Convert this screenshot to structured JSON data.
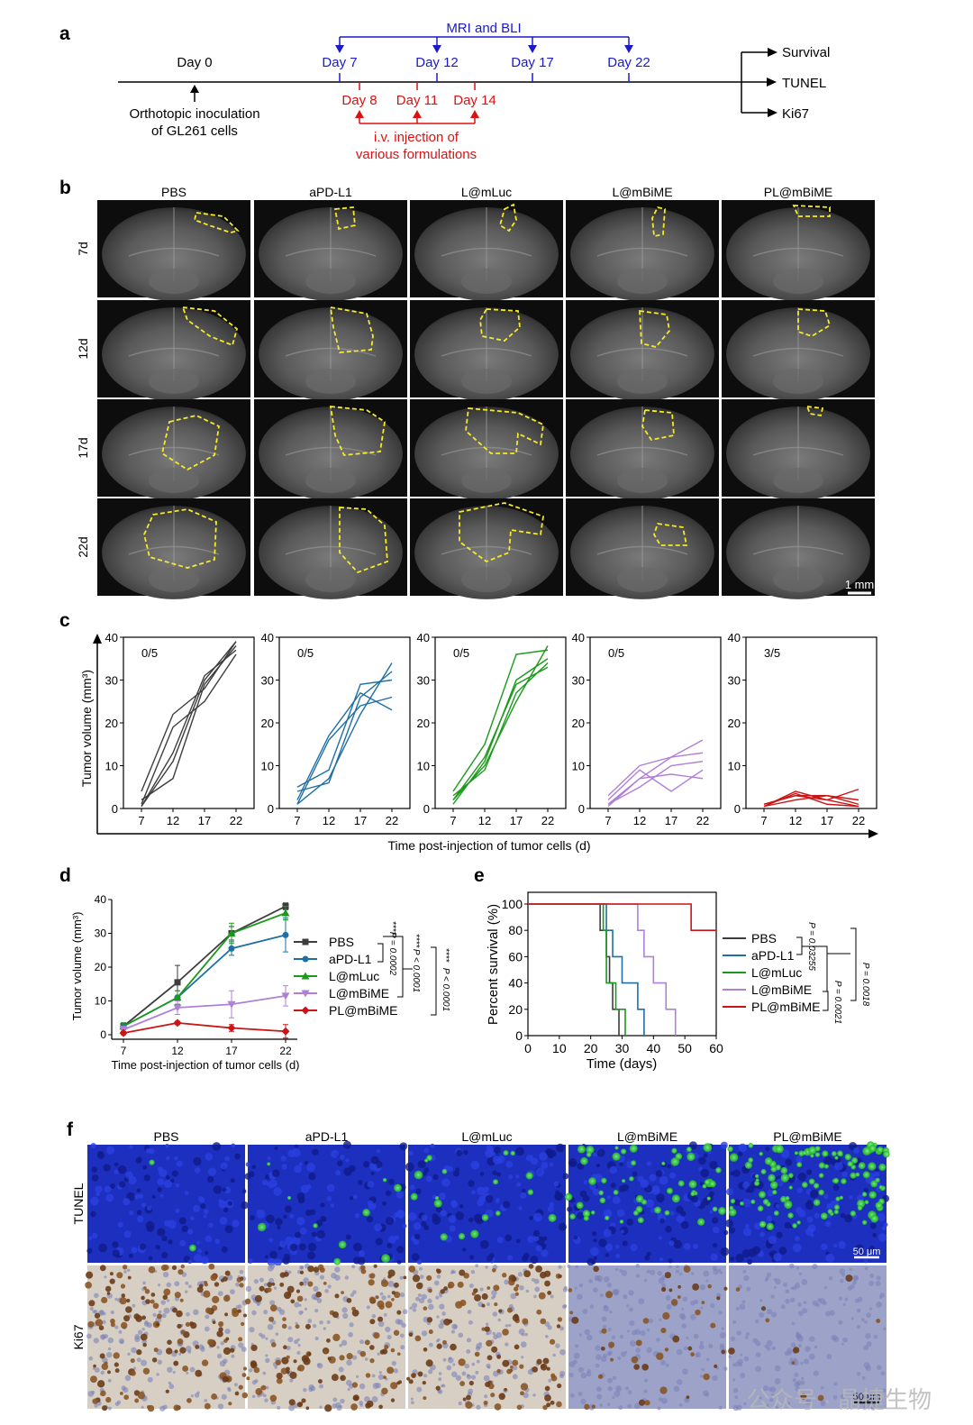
{
  "panel_a": {
    "letter": "a",
    "mri_label": "MRI and BLI",
    "day0": "Day 0",
    "imaging_days": [
      "Day 7",
      "Day 12",
      "Day 17",
      "Day 22"
    ],
    "injection_days": [
      "Day 8",
      "Day 11",
      "Day 14"
    ],
    "inoculation_line1": "Orthotopic inoculation",
    "inoculation_line2": "of GL261 cells",
    "injection_line1": "i.v. injection of",
    "injection_line2": "various formulations",
    "endpoints": [
      "Survival",
      "TUNEL",
      "Ki67"
    ],
    "colors": {
      "imaging": "#1a1acc",
      "injection": "#dd1111"
    }
  },
  "panel_b": {
    "letter": "b",
    "groups": [
      "PBS",
      "aPD-L1",
      "L@mLuc",
      "L@mBiME",
      "PL@mBiME"
    ],
    "rows": [
      "7d",
      "12d",
      "17d",
      "22d"
    ],
    "scale_bar": "1 mm"
  },
  "panel_c": {
    "letter": "c",
    "ylabel": "Tumor volume (mm³)",
    "xlabel": "Time post-injection of tumor cells (d)",
    "yticks": [
      "0",
      "10",
      "20",
      "30",
      "40"
    ],
    "xticks": [
      "7",
      "12",
      "17",
      "22"
    ],
    "ratios": [
      "0/5",
      "0/5",
      "0/5",
      "0/5",
      "3/5"
    ]
  },
  "panel_d": {
    "letter": "d",
    "legend": [
      "PBS",
      "aPD-L1",
      "L@mLuc",
      "L@mBiME",
      "PL@mBiME"
    ],
    "ylabel": "Tumor volume (mm³)",
    "xlabel": "Time post-injection of tumor cells (d)",
    "yticks": [
      "0",
      "10",
      "20",
      "30",
      "40"
    ],
    "xticks": [
      "7",
      "12",
      "17",
      "22"
    ],
    "pvalues": [
      "P = 0.0002",
      "P < 0.0001",
      "P < 0.0001"
    ],
    "stars": "****"
  },
  "panel_e": {
    "letter": "e",
    "legend": [
      "PBS",
      "aPD-L1",
      "L@mLuc",
      "L@mBiME",
      "PL@mBiME"
    ],
    "ylabel": "Percent survival (%)",
    "xlabel": "Time (days)",
    "yticks": [
      "0",
      "20",
      "40",
      "60",
      "80",
      "100"
    ],
    "xticks": [
      "0",
      "10",
      "20",
      "30",
      "40",
      "50",
      "60"
    ],
    "pvalues": [
      "P = 0.03255",
      "P = 0.0021",
      "P = 0.0018"
    ]
  },
  "panel_f": {
    "letter": "f",
    "groups": [
      "PBS",
      "aPD-L1",
      "L@mLuc",
      "L@mBiME",
      "PL@mBiME"
    ],
    "rows": [
      "TUNEL",
      "Ki67"
    ],
    "scale_bar": "50 μm",
    "watermark": "公众号 · 晶捷生物"
  },
  "colors": {
    "PBS": "#3d3d3d",
    "aPD-L1": "#1f6fa3",
    "L@mLuc": "#1a9a1a",
    "L@mBiME": "#b07fd8",
    "PL@mBiME": "#c91515"
  },
  "chart_data": [
    {
      "type": "line",
      "panel": "c",
      "x": [
        7,
        12,
        17,
        22
      ],
      "xlabel": "Time post-injection of tumor cells (d)",
      "ylabel": "Tumor volume (mm³)",
      "ylim": [
        0,
        40
      ],
      "facets": [
        {
          "name": "PBS",
          "ratio": "0/5",
          "lines": [
            [
              4,
              22,
              28,
              39
            ],
            [
              0.5,
              13,
              31,
              37
            ],
            [
              2,
              7,
              29,
              38
            ],
            [
              1,
              19,
              25,
              36
            ],
            [
              0.5,
              11,
              30,
              39
            ]
          ]
        },
        {
          "name": "aPD-L1",
          "ratio": "0/5",
          "lines": [
            [
              5,
              9,
              29,
              30
            ],
            [
              1,
              7,
              22,
              34
            ],
            [
              2,
              17,
              27,
              23
            ],
            [
              1,
              16,
              24,
              26
            ],
            [
              4,
              6,
              26,
              32
            ]
          ]
        },
        {
          "name": "L@mLuc",
          "ratio": "0/5",
          "lines": [
            [
              4,
              15,
              36,
              37
            ],
            [
              2,
              10,
              25,
              38
            ],
            [
              1,
              11,
              30,
              35
            ],
            [
              3,
              9,
              27,
              34
            ],
            [
              2,
              12,
              29,
              33
            ]
          ]
        },
        {
          "name": "L@mBiME",
          "ratio": "0/5",
          "lines": [
            [
              1,
              7,
              12,
              16
            ],
            [
              3,
              10,
              12,
              13
            ],
            [
              0.5,
              7,
              8,
              7
            ],
            [
              1,
              5,
              10,
              11
            ],
            [
              2,
              9,
              4,
              9
            ]
          ]
        },
        {
          "name": "PL@mBiME",
          "ratio": "3/5",
          "lines": [
            [
              0.5,
              4,
              2,
              4.5
            ],
            [
              1,
              3,
              2,
              0.5
            ],
            [
              0.5,
              3.5,
              1,
              0.5
            ],
            [
              0.5,
              2,
              3,
              1
            ],
            [
              1,
              3,
              3,
              2
            ]
          ]
        }
      ]
    },
    {
      "type": "line",
      "panel": "d",
      "categories": [
        7,
        12,
        17,
        22
      ],
      "xlabel": "Time post-injection of tumor cells (d)",
      "ylabel": "Tumor volume (mm³)",
      "ylim": [
        0,
        40
      ],
      "series": [
        {
          "name": "PBS",
          "values": [
            2.5,
            15.5,
            30,
            38
          ],
          "errors": [
            1,
            5,
            2,
            1
          ]
        },
        {
          "name": "aPD-L1",
          "values": [
            2.5,
            11,
            25.5,
            29.5
          ],
          "errors": [
            1,
            2,
            2,
            5
          ]
        },
        {
          "name": "L@mLuc",
          "values": [
            2.5,
            11,
            30,
            36
          ],
          "errors": [
            1,
            2,
            3,
            2
          ]
        },
        {
          "name": "L@mBiME",
          "values": [
            1.5,
            8,
            9,
            11.5
          ],
          "errors": [
            1,
            2,
            4,
            3
          ]
        },
        {
          "name": "PL@mBiME",
          "values": [
            0.5,
            3.5,
            2,
            1
          ],
          "errors": [
            0.5,
            0.5,
            1,
            2
          ]
        }
      ]
    },
    {
      "type": "line",
      "panel": "e",
      "xlabel": "Time (days)",
      "ylabel": "Percent survival (%)",
      "xlim": [
        0,
        60
      ],
      "ylim": [
        0,
        100
      ],
      "series": [
        {
          "name": "PBS",
          "steps": [
            [
              0,
              100
            ],
            [
              23,
              80
            ],
            [
              25,
              60
            ],
            [
              26,
              40
            ],
            [
              27,
              20
            ],
            [
              29,
              0
            ]
          ]
        },
        {
          "name": "aPD-L1",
          "steps": [
            [
              0,
              100
            ],
            [
              25,
              80
            ],
            [
              27,
              60
            ],
            [
              30,
              40
            ],
            [
              35,
              20
            ],
            [
              37,
              0
            ]
          ]
        },
        {
          "name": "L@mLuc",
          "steps": [
            [
              0,
              100
            ],
            [
              24,
              80
            ],
            [
              25,
              40
            ],
            [
              28,
              20
            ],
            [
              31,
              0
            ]
          ]
        },
        {
          "name": "L@mBiME",
          "steps": [
            [
              0,
              100
            ],
            [
              35,
              80
            ],
            [
              37,
              60
            ],
            [
              40,
              40
            ],
            [
              44,
              20
            ],
            [
              47,
              0
            ]
          ]
        },
        {
          "name": "PL@mBiME",
          "steps": [
            [
              0,
              100
            ],
            [
              52,
              80
            ],
            [
              60,
              80
            ]
          ]
        }
      ]
    }
  ]
}
